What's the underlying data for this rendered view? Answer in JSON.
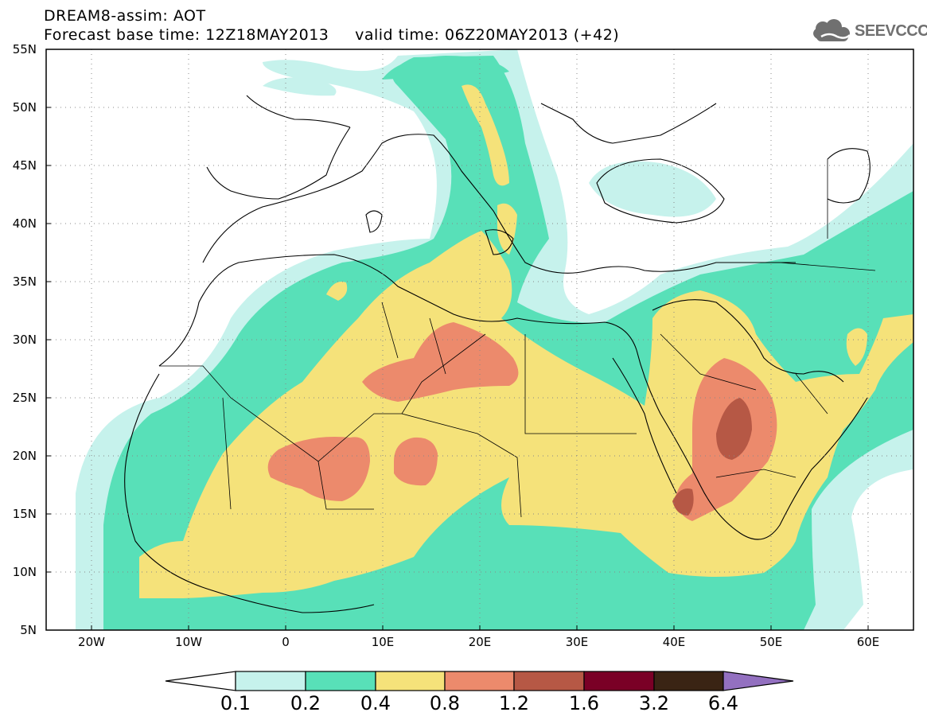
{
  "title": {
    "line1": "DREAM8-assim: AOT",
    "line2": "Forecast base time: 12Z18MAY2013     valid time: 06Z20MAY2013 (+42)"
  },
  "logo": {
    "text": "SEEVCCC",
    "icon": "cloud-icon"
  },
  "map": {
    "lat_labels": [
      "55N",
      "50N",
      "45N",
      "40N",
      "35N",
      "30N",
      "25N",
      "20N",
      "15N",
      "10N",
      "5N"
    ],
    "lon_labels": [
      "20W",
      "10W",
      "0",
      "10E",
      "20E",
      "30E",
      "40E",
      "50E",
      "60E"
    ],
    "colors": {
      "c01": "#c6f2ec",
      "c02": "#58e0b8",
      "c04": "#f5e27a",
      "c08": "#ec8a6c",
      "c12": "#b65845",
      "c16": "#7a0026",
      "c32": "#3a2414",
      "c64": "#9370c0",
      "coast": "#000000"
    }
  },
  "colorbar": {
    "labels": [
      "0.1",
      "0.2",
      "0.4",
      "0.8",
      "1.2",
      "1.6",
      "3.2",
      "6.4"
    ],
    "colors": [
      "#ffffff",
      "#c6f2ec",
      "#58e0b8",
      "#f5e27a",
      "#ec8a6c",
      "#b65845",
      "#7a0026",
      "#3a2414",
      "#9370c0"
    ]
  }
}
